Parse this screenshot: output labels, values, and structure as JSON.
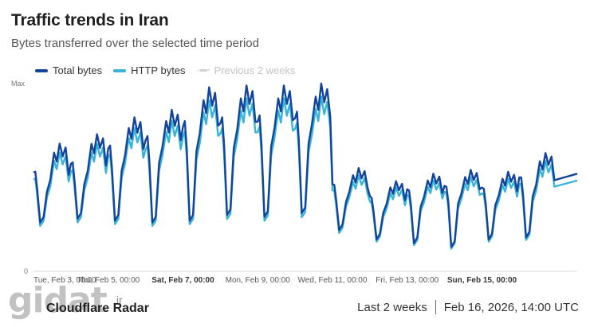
{
  "header": {
    "title": "Traffic trends in Iran",
    "subtitle": "Bytes transferred over the selected time period"
  },
  "legend": [
    {
      "label": "Total bytes",
      "color": "#12449c",
      "style": "solid"
    },
    {
      "label": "HTTP bytes",
      "color": "#39b3da",
      "style": "solid"
    },
    {
      "label": "Previous 2 weeks",
      "color": "#d0d0d0",
      "style": "dotted"
    }
  ],
  "footer": {
    "brand": "Cloudflare Radar",
    "range": "Last 2 weeks",
    "timestamp": "Feb 16, 2026, 14:00 UTC"
  },
  "watermark": {
    "text": "gidat",
    "suffix": ".ir"
  },
  "chart_data": {
    "type": "line",
    "y_labels": [
      "Max",
      "0"
    ],
    "ylim": [
      0,
      1
    ],
    "xlim": [
      0,
      14.55
    ],
    "x_ticks": [
      {
        "x": 0,
        "label": "Tue, Feb 3, 00:00",
        "bold": false
      },
      {
        "x": 2,
        "label": "Thu, Feb 5, 00:00",
        "bold": false
      },
      {
        "x": 4,
        "label": "Sat, Feb 7, 00:00",
        "bold": true
      },
      {
        "x": 6,
        "label": "Mon, Feb 9, 00:00",
        "bold": false
      },
      {
        "x": 8,
        "label": "Wed, Feb 11, 00:00",
        "bold": false
      },
      {
        "x": 10,
        "label": "Fri, Feb 13, 00:00",
        "bold": false
      },
      {
        "x": 12,
        "label": "Sun, Feb 15, 00:00",
        "bold": true
      }
    ],
    "days": [
      {
        "pk": 0.68,
        "tr": 0.26,
        "n1": 0.53
      },
      {
        "pk": 0.73,
        "tr": 0.28,
        "n1": 0.58
      },
      {
        "pk": 0.82,
        "tr": 0.27,
        "n1": 0.67
      },
      {
        "pk": 0.86,
        "tr": 0.26,
        "n1": 0.72
      },
      {
        "pk": 0.98,
        "tr": 0.27,
        "n1": 0.8
      },
      {
        "pk": 0.99,
        "tr": 0.3,
        "n1": 0.82
      },
      {
        "pk": 0.99,
        "tr": 0.29,
        "n1": 0.83
      },
      {
        "pk": 1.0,
        "tr": 0.31,
        "n1": 0.85
      },
      {
        "pk": 0.55,
        "tr": 0.22,
        "n1": 0.46
      },
      {
        "pk": 0.48,
        "tr": 0.17,
        "n1": 0.39
      },
      {
        "pk": 0.52,
        "tr": 0.15,
        "n1": 0.43
      },
      {
        "pk": 0.54,
        "tr": 0.13,
        "n1": 0.45
      },
      {
        "pk": 0.53,
        "tr": 0.17,
        "n1": 0.44
      },
      {
        "pk": 0.63,
        "tr": 0.18,
        "n1": 0.5
      }
    ],
    "series": [
      {
        "name": "Total bytes",
        "color": "#12449c"
      },
      {
        "name": "HTTP bytes",
        "color": "#39b3da"
      }
    ],
    "end_value": 0.52,
    "grid": false
  }
}
